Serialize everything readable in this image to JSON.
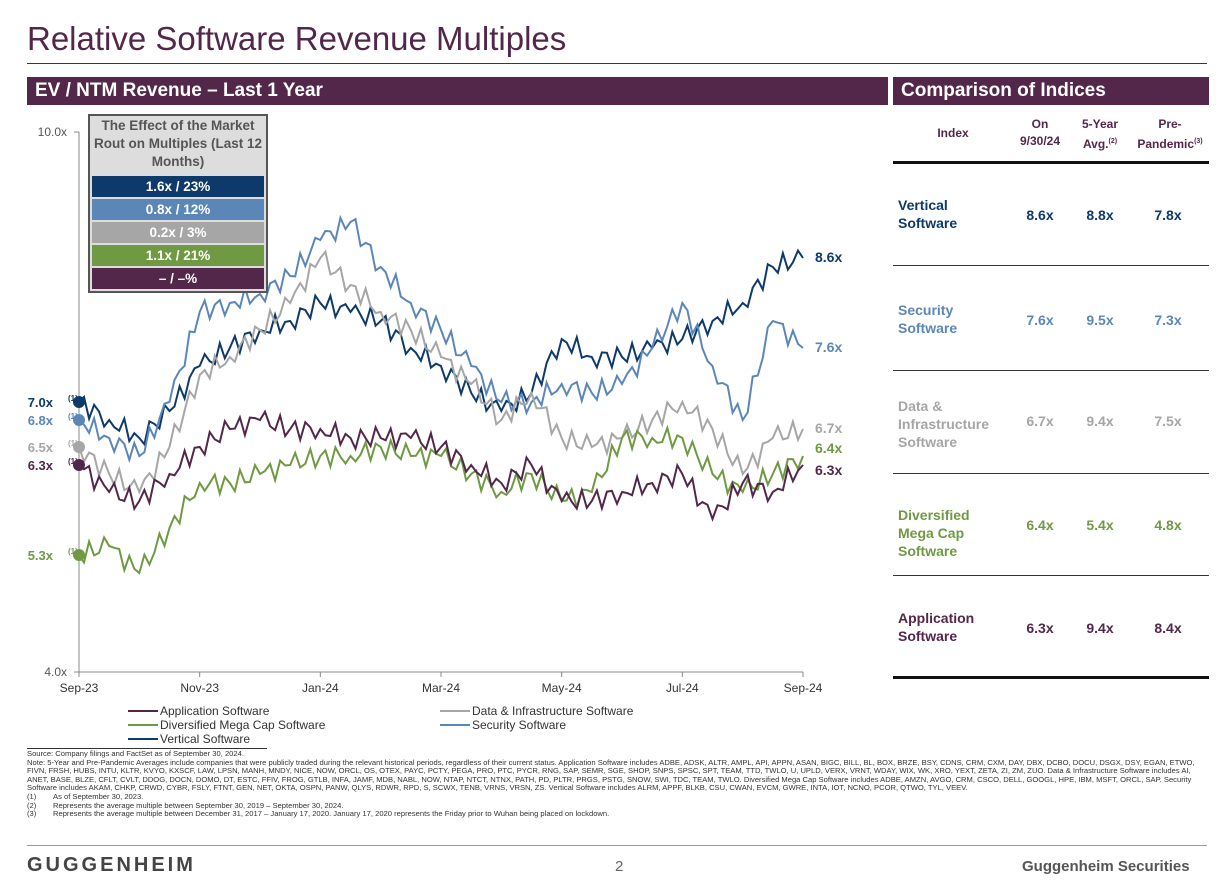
{
  "title": "Relative Software Revenue Multiples",
  "left_header": "EV / NTM Revenue – Last 1 Year",
  "right_header": "Comparison of Indices",
  "effect_box": {
    "heading": "The Effect of the Market Rout on Multiples (Last 12 Months)",
    "rows": [
      {
        "label": "1.6x / 23%",
        "color": "#0d3a6b"
      },
      {
        "label": "0.8x / 12%",
        "color": "#5b87b8"
      },
      {
        "label": "0.2x / 3%",
        "color": "#a6a6a6"
      },
      {
        "label": "1.1x / 21%",
        "color": "#6f9a43"
      },
      {
        "label": "– / –%",
        "color": "#53274a"
      }
    ]
  },
  "chart_data": {
    "type": "line",
    "title": "EV / NTM Revenue – Last 1 Year",
    "ylim": [
      4.0,
      10.0
    ],
    "y_ticks": [
      "10.0x",
      "4.0x"
    ],
    "x_ticks": [
      "Sep-23",
      "Nov-23",
      "Jan-24",
      "Mar-24",
      "May-24",
      "Jul-24",
      "Sep-24"
    ],
    "x": [
      0,
      0.5,
      1,
      1.5,
      2,
      2.5,
      3,
      3.5,
      4,
      4.5,
      5,
      5.5,
      6,
      6.5,
      7,
      7.5,
      8,
      8.5,
      9,
      9.5,
      10,
      10.5,
      11,
      11.5,
      12
    ],
    "series": [
      {
        "name": "Vertical Software",
        "color": "#0d3a6b",
        "start_label": "7.0x",
        "end_label": "8.6x",
        "values": [
          7.0,
          6.8,
          6.6,
          6.9,
          7.4,
          7.6,
          7.8,
          7.9,
          8.1,
          8.0,
          7.9,
          7.6,
          7.4,
          7.1,
          6.9,
          7.1,
          7.7,
          7.5,
          7.5,
          7.6,
          7.7,
          7.9,
          8.1,
          8.5,
          8.6
        ]
      },
      {
        "name": "Security Software",
        "color": "#5b87b8",
        "start_label": "6.8x",
        "end_label": "7.6x",
        "values": [
          6.8,
          6.6,
          6.4,
          7.0,
          8.0,
          8.1,
          8.2,
          8.4,
          8.8,
          9.0,
          8.5,
          8.1,
          7.8,
          7.4,
          7.0,
          7.0,
          7.2,
          7.1,
          7.2,
          7.6,
          8.1,
          7.4,
          6.8,
          7.9,
          7.6
        ]
      },
      {
        "name": "Data & Infrastructure Software",
        "color": "#a6a6a6",
        "start_label": "6.5x",
        "end_label": "6.7x",
        "values": [
          6.5,
          6.2,
          6.0,
          6.5,
          7.3,
          7.5,
          7.8,
          8.1,
          8.6,
          8.3,
          8.0,
          7.8,
          7.5,
          7.2,
          6.8,
          7.1,
          6.6,
          6.5,
          6.6,
          6.8,
          7.0,
          6.7,
          6.2,
          6.6,
          6.7
        ]
      },
      {
        "name": "Diversified Mega Cap Software",
        "color": "#6f9a43",
        "start_label": "5.3x",
        "end_label": "6.4x",
        "values": [
          5.3,
          5.4,
          5.1,
          5.6,
          6.1,
          6.1,
          6.2,
          6.3,
          6.4,
          6.4,
          6.5,
          6.4,
          6.4,
          6.2,
          6.0,
          6.2,
          5.9,
          6.0,
          6.6,
          6.6,
          6.6,
          6.2,
          6.0,
          6.2,
          6.4
        ]
      },
      {
        "name": "Application Software",
        "color": "#53274a",
        "start_label": "6.3x",
        "end_label": "6.3x",
        "values": [
          6.3,
          6.0,
          5.9,
          6.2,
          6.5,
          6.7,
          6.8,
          6.7,
          6.7,
          6.6,
          6.6,
          6.6,
          6.5,
          6.3,
          6.1,
          6.3,
          5.9,
          5.9,
          6.0,
          6.1,
          6.2,
          5.7,
          6.1,
          6.0,
          6.3
        ]
      }
    ],
    "legend": [
      "Application Software",
      "Data & Infrastructure Software",
      "Diversified Mega Cap Software",
      "Security Software",
      "Vertical Software"
    ],
    "legend_position": "bottom"
  },
  "table": {
    "headers": {
      "index": "Index",
      "on": "On 9/30/24",
      "avg": "5-Year Avg.",
      "avg_sup": "(2)",
      "pre": "Pre-Pandemic",
      "pre_sup": "(3)"
    },
    "rows": [
      {
        "name": "Vertical Software",
        "on": "8.6x",
        "avg": "8.8x",
        "pre": "7.8x",
        "color": "#0d3a6b"
      },
      {
        "name": "Security Software",
        "on": "7.6x",
        "avg": "9.5x",
        "pre": "7.3x",
        "color": "#5b87b8"
      },
      {
        "name": "Data & Infrastructure Software",
        "on": "6.7x",
        "avg": "9.4x",
        "pre": "7.5x",
        "color": "#a6a6a6"
      },
      {
        "name": "Diversified Mega Cap Software",
        "on": "6.4x",
        "avg": "5.4x",
        "pre": "4.8x",
        "color": "#6f9a43"
      },
      {
        "name": "Application Software",
        "on": "6.3x",
        "avg": "9.4x",
        "pre": "8.4x",
        "color": "#53274a"
      }
    ]
  },
  "notes": {
    "source": "Source: Company filings and FactSet as of September 30, 2024.",
    "note": "Note: 5-Year and Pre-Pandemic Averages include companies that were publicly traded during the relevant historical periods, regardless of their current status. Application Software includes ADBE, ADSK, ALTR, AMPL, API, APPN, ASAN, BIGC, BILL, BL, BOX, BRZE, BSY, CDNS, CRM, CXM, DAY, DBX, DCBO, DOCU, DSGX, DSY, EGAN, ETWO, FIVN, FRSH, HUBS, INTU, KLTR, KVYO, KXSCF, LAW, LPSN, MANH, MNDY, NICE, NOW, ORCL, OS, OTEX, PAYC, PCTY, PEGA, PRO, PTC, PYCR, RNG, SAP, SEMR, SGE, SHOP, SNPS, SPSC, SPT, TEAM, TTD, TWLO, U, UPLD, VERX, VRNT, WDAY, WIX, WK, XRO, YEXT, ZETA, ZI, ZM, ZUO. Data & Infrastructure Software includes AI, ANET, BASE, BLZE, CFLT, CVLT, DDOG, DOCN, DOMO, DT, ESTC, FFIV, FROG, GTLB, INFA, JAMF, MDB, NABL, NOW, NTAP, NTCT, NTNX, PATH, PD, PLTR, PRGS, PSTG, SNOW, SWI, TDC, TEAM, TWLO. Diversified Mega Cap Software includes ADBE, AMZN, AVGO, CRM, CSCO, DELL, GOOGL, HPE, IBM, MSFT, ORCL, SAP. Security Software includes AKAM, CHKP, CRWD, CYBR, FSLY, FTNT, GEN, NET, OKTA, OSPN, PANW, QLYS, RDWR, RPD, S, SCWX, TENB, VRNS, VRSN, ZS. Vertical Software includes ALRM, APPF, BLKB, CSU, CWAN, EVCM, GWRE, INTA, IOT, NCNO, PCOR, QTWO, TYL, VEEV.",
    "footnotes": [
      {
        "n": "(1)",
        "t": "As of September 30, 2023."
      },
      {
        "n": "(2)",
        "t": "Represents the average multiple between September 30, 2019 – September 30, 2024."
      },
      {
        "n": "(3)",
        "t": "Represents the average multiple between December 31, 2017 – January 17, 2020. January 17, 2020 represents the Friday prior to Wuhan being placed on lockdown."
      }
    ]
  },
  "footer": {
    "logo": "GUGGENHEIM",
    "page": "2",
    "right": "Guggenheim Securities"
  }
}
